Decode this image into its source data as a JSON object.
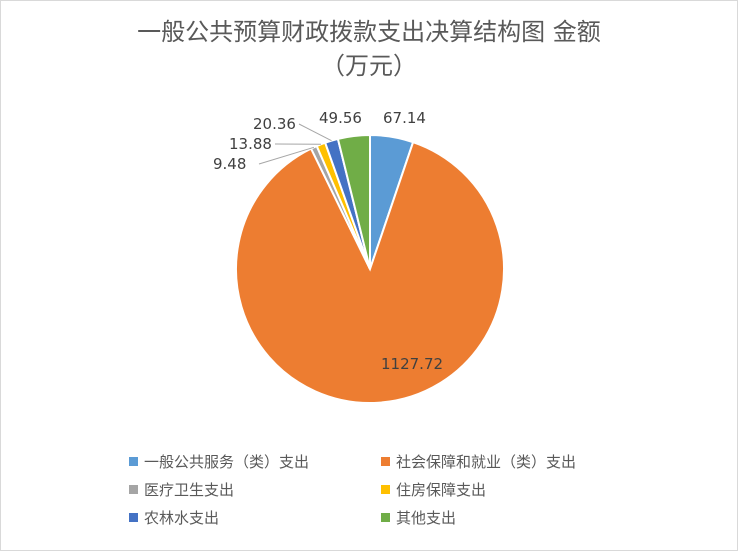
{
  "chart_data": {
    "type": "pie",
    "title": "一般公共预算财政拨款支出决算结构图 金额（万元）",
    "title_lines": [
      "一般公共预算财政拨款支出决算结构图 金额",
      "（万元）"
    ],
    "categories": [
      "一般公共服务（类）支出",
      "社会保障和就业（类）支出",
      "医疗卫生支出",
      "住房保障支出",
      "农林水支出",
      "其他支出"
    ],
    "values": [
      67.14,
      1127.72,
      9.48,
      13.88,
      20.36,
      49.56
    ],
    "data_labels": [
      "67.14",
      "1127.72",
      "9.48",
      "13.88",
      "20.36",
      "49.56"
    ],
    "colors": [
      "#5b9bd5",
      "#ed7d31",
      "#a5a5a5",
      "#ffc000",
      "#4472c4",
      "#70ad47"
    ],
    "legend_position": "bottom"
  }
}
